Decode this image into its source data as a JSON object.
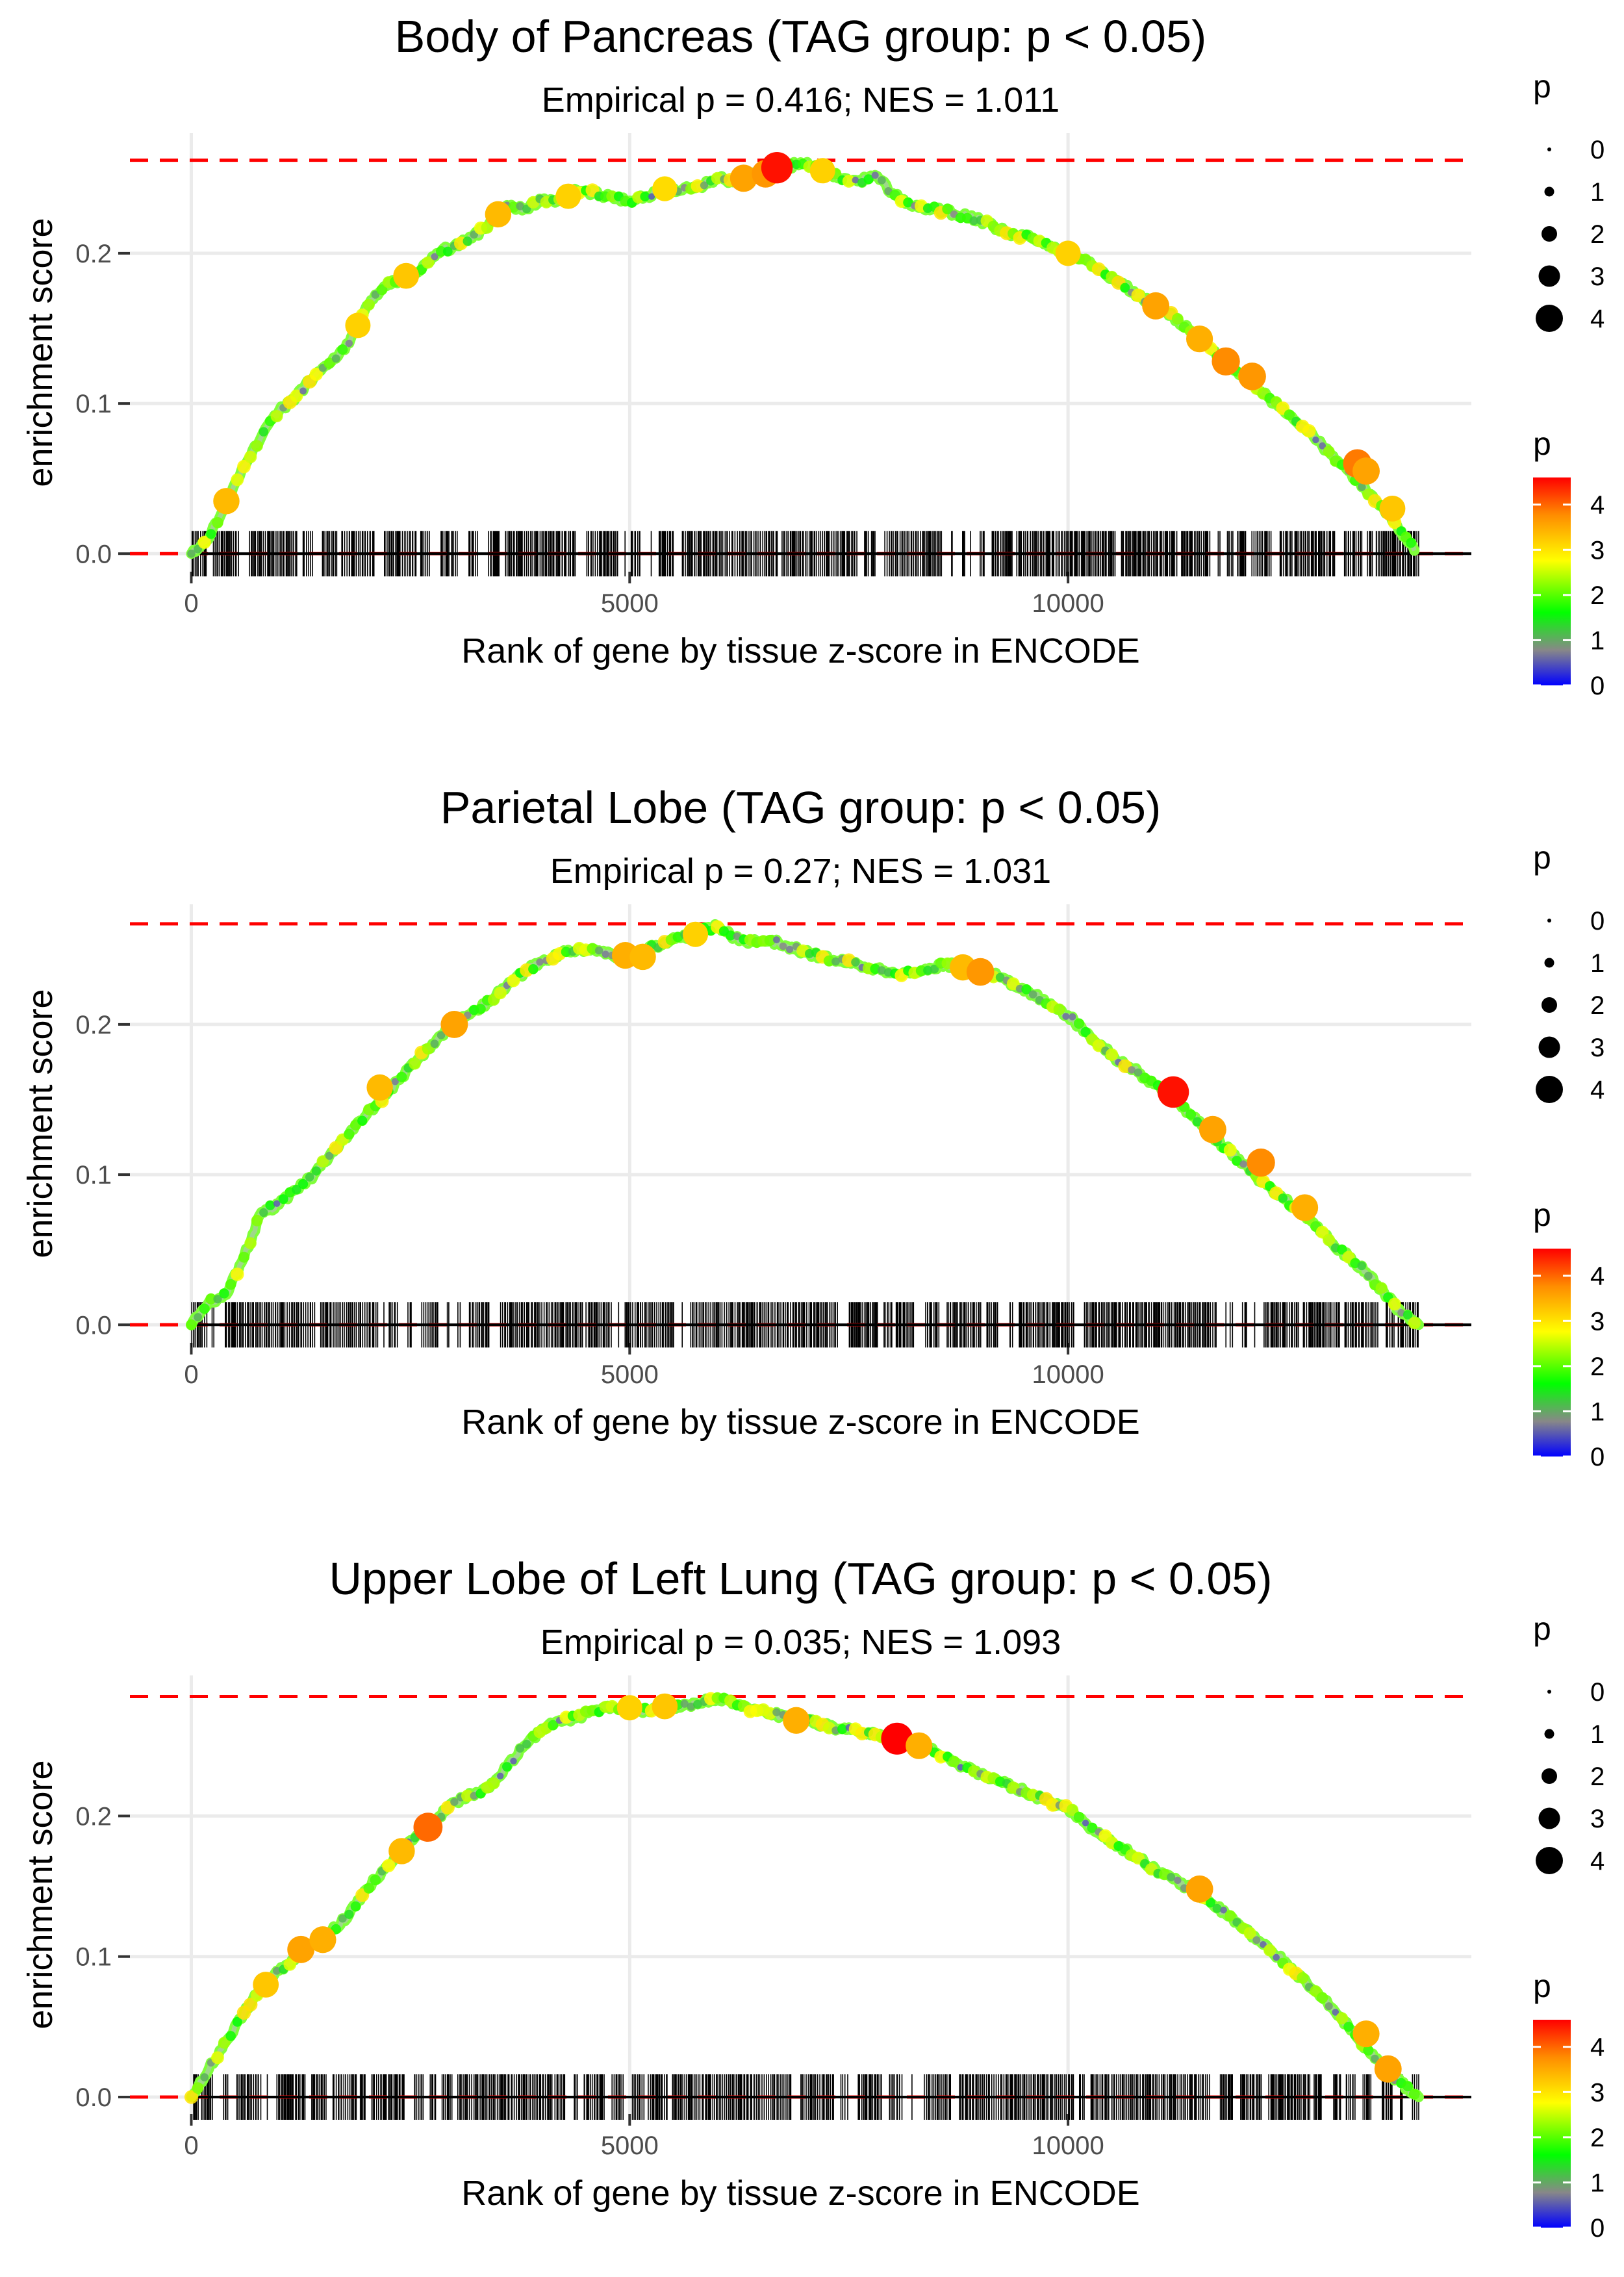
{
  "chart_data": [
    {
      "type": "line",
      "title": "Body of Pancreas (TAG group: p < 0.05)",
      "subtitle": "Empirical p = 0.416; NES = 1.011",
      "xlabel": "Rank of gene by tissue z-score in ENCODE",
      "ylabel": "enrichment score",
      "xlim": [
        -700,
        14600
      ],
      "ylim": [
        -0.012,
        0.28
      ],
      "xticks": [
        0,
        5000,
        10000
      ],
      "xtick_labels": [
        "0",
        "5000",
        "10000"
      ],
      "yticks": [
        0.0,
        0.1,
        0.2
      ],
      "ytick_labels": [
        "0.0",
        "0.1",
        "0.2"
      ],
      "max_es": 0.262,
      "gene_count": 14000,
      "series": [
        {
          "name": "enrichment score",
          "x": [
            0,
            200,
            400,
            600,
            800,
            1000,
            1200,
            1400,
            1600,
            1800,
            2000,
            2200,
            2400,
            2600,
            2800,
            3000,
            3200,
            3400,
            3600,
            3800,
            4000,
            4200,
            4400,
            4600,
            4800,
            5000,
            5200,
            5400,
            5600,
            5800,
            6000,
            6200,
            6400,
            6600,
            6800,
            7000,
            7200,
            7400,
            7600,
            7800,
            8000,
            8200,
            8400,
            8600,
            8800,
            9000,
            9200,
            9400,
            9600,
            9800,
            10000,
            10200,
            10400,
            10600,
            10800,
            11000,
            11200,
            11400,
            11600,
            11800,
            12000,
            12200,
            12400,
            12600,
            12800,
            13000,
            13200,
            13400,
            13600,
            13800,
            13950
          ],
          "y": [
            0.0,
            0.01,
            0.035,
            0.058,
            0.078,
            0.095,
            0.105,
            0.118,
            0.128,
            0.14,
            0.165,
            0.178,
            0.183,
            0.188,
            0.2,
            0.205,
            0.21,
            0.22,
            0.232,
            0.23,
            0.235,
            0.236,
            0.242,
            0.24,
            0.238,
            0.235,
            0.238,
            0.243,
            0.242,
            0.245,
            0.25,
            0.248,
            0.252,
            0.256,
            0.258,
            0.26,
            0.255,
            0.25,
            0.248,
            0.252,
            0.24,
            0.232,
            0.23,
            0.228,
            0.225,
            0.222,
            0.216,
            0.212,
            0.21,
            0.205,
            0.2,
            0.196,
            0.188,
            0.18,
            0.172,
            0.165,
            0.158,
            0.148,
            0.138,
            0.128,
            0.118,
            0.108,
            0.098,
            0.088,
            0.078,
            0.066,
            0.055,
            0.042,
            0.03,
            0.015,
            0.002
          ]
        }
      ],
      "highlight_points": [
        {
          "x": 400,
          "y": 0.035,
          "p": 3.4
        },
        {
          "x": 1900,
          "y": 0.152,
          "p": 3.2
        },
        {
          "x": 2450,
          "y": 0.185,
          "p": 3.3
        },
        {
          "x": 3500,
          "y": 0.226,
          "p": 3.4
        },
        {
          "x": 4300,
          "y": 0.238,
          "p": 3.2
        },
        {
          "x": 5400,
          "y": 0.243,
          "p": 3.1
        },
        {
          "x": 6300,
          "y": 0.25,
          "p": 3.6
        },
        {
          "x": 6550,
          "y": 0.253,
          "p": 3.7
        },
        {
          "x": 6680,
          "y": 0.257,
          "p": 4.5
        },
        {
          "x": 7200,
          "y": 0.255,
          "p": 3.2
        },
        {
          "x": 10000,
          "y": 0.2,
          "p": 3.2
        },
        {
          "x": 11000,
          "y": 0.165,
          "p": 3.6
        },
        {
          "x": 11500,
          "y": 0.143,
          "p": 3.5
        },
        {
          "x": 11800,
          "y": 0.128,
          "p": 3.8
        },
        {
          "x": 12100,
          "y": 0.118,
          "p": 3.7
        },
        {
          "x": 13300,
          "y": 0.06,
          "p": 3.9
        },
        {
          "x": 13400,
          "y": 0.055,
          "p": 3.6
        },
        {
          "x": 13700,
          "y": 0.03,
          "p": 3.3
        }
      ],
      "legend_size": {
        "title": "p",
        "labels": [
          "0",
          "1",
          "2",
          "3",
          "4"
        ]
      },
      "legend_color": {
        "title": "p",
        "labels": [
          "0",
          "1",
          "2",
          "3",
          "4"
        ]
      }
    },
    {
      "type": "line",
      "title": "Parietal Lobe (TAG group: p < 0.05)",
      "subtitle": "Empirical p = 0.27; NES = 1.031",
      "xlabel": "Rank of gene by tissue z-score in ENCODE",
      "ylabel": "enrichment score",
      "xlim": [
        -700,
        14600
      ],
      "ylim": [
        -0.012,
        0.28
      ],
      "xticks": [
        0,
        5000,
        10000
      ],
      "xtick_labels": [
        "0",
        "5000",
        "10000"
      ],
      "yticks": [
        0.0,
        0.1,
        0.2
      ],
      "ytick_labels": [
        "0.0",
        "0.1",
        "0.2"
      ],
      "max_es": 0.267,
      "gene_count": 14000,
      "series": [
        {
          "name": "enrichment score",
          "x": [
            0,
            200,
            400,
            600,
            800,
            1000,
            1200,
            1400,
            1600,
            1800,
            2000,
            2200,
            2400,
            2600,
            2800,
            3000,
            3200,
            3400,
            3600,
            3800,
            4000,
            4200,
            4400,
            4600,
            4800,
            5000,
            5200,
            5400,
            5600,
            5800,
            6000,
            6200,
            6400,
            6600,
            6800,
            7000,
            7200,
            7400,
            7600,
            7800,
            8000,
            8200,
            8400,
            8600,
            8800,
            9000,
            9200,
            9400,
            9600,
            9800,
            10000,
            10200,
            10400,
            10600,
            10800,
            11000,
            11200,
            11400,
            11600,
            11800,
            12000,
            12200,
            12400,
            12600,
            12800,
            13000,
            13200,
            13400,
            13600,
            13800,
            14000
          ],
          "y": [
            0.0,
            0.015,
            0.02,
            0.045,
            0.075,
            0.08,
            0.09,
            0.1,
            0.115,
            0.127,
            0.14,
            0.152,
            0.165,
            0.178,
            0.19,
            0.2,
            0.208,
            0.215,
            0.226,
            0.235,
            0.242,
            0.247,
            0.25,
            0.25,
            0.246,
            0.245,
            0.25,
            0.255,
            0.258,
            0.262,
            0.265,
            0.258,
            0.255,
            0.256,
            0.252,
            0.248,
            0.245,
            0.242,
            0.24,
            0.237,
            0.235,
            0.234,
            0.236,
            0.24,
            0.238,
            0.236,
            0.232,
            0.225,
            0.22,
            0.214,
            0.206,
            0.195,
            0.185,
            0.175,
            0.168,
            0.16,
            0.152,
            0.14,
            0.128,
            0.118,
            0.107,
            0.095,
            0.086,
            0.078,
            0.068,
            0.055,
            0.045,
            0.035,
            0.022,
            0.008,
            0.0
          ]
        }
      ],
      "highlight_points": [
        {
          "x": 2150,
          "y": 0.158,
          "p": 3.4
        },
        {
          "x": 3000,
          "y": 0.2,
          "p": 3.6
        },
        {
          "x": 4950,
          "y": 0.246,
          "p": 3.5
        },
        {
          "x": 5150,
          "y": 0.245,
          "p": 3.4
        },
        {
          "x": 5750,
          "y": 0.26,
          "p": 3.2
        },
        {
          "x": 8800,
          "y": 0.238,
          "p": 3.4
        },
        {
          "x": 9000,
          "y": 0.235,
          "p": 3.7
        },
        {
          "x": 11200,
          "y": 0.155,
          "p": 4.5
        },
        {
          "x": 11650,
          "y": 0.13,
          "p": 3.6
        },
        {
          "x": 12200,
          "y": 0.108,
          "p": 3.8
        },
        {
          "x": 12700,
          "y": 0.078,
          "p": 3.5
        }
      ],
      "legend_size": {
        "title": "p",
        "labels": [
          "0",
          "1",
          "2",
          "3",
          "4"
        ]
      },
      "legend_color": {
        "title": "p",
        "labels": [
          "0",
          "1",
          "2",
          "3",
          "4"
        ]
      }
    },
    {
      "type": "line",
      "title": "Upper Lobe of Left Lung (TAG group: p < 0.05)",
      "subtitle": "Empirical p = 0.035; NES = 1.093",
      "xlabel": "Rank of gene by tissue z-score in ENCODE",
      "ylabel": "enrichment score",
      "xlim": [
        -700,
        14600
      ],
      "ylim": [
        -0.012,
        0.3
      ],
      "xticks": [
        0,
        5000,
        10000
      ],
      "xtick_labels": [
        "0",
        "5000",
        "10000"
      ],
      "yticks": [
        0.0,
        0.1,
        0.2
      ],
      "ytick_labels": [
        "0.0",
        "0.1",
        "0.2"
      ],
      "max_es": 0.285,
      "gene_count": 14000,
      "series": [
        {
          "name": "enrichment score",
          "x": [
            0,
            200,
            400,
            600,
            800,
            1000,
            1200,
            1400,
            1600,
            1800,
            2000,
            2200,
            2400,
            2600,
            2800,
            3000,
            3200,
            3400,
            3600,
            3800,
            4000,
            4200,
            4400,
            4600,
            4800,
            5000,
            5200,
            5400,
            5600,
            5800,
            6000,
            6200,
            6400,
            6600,
            6800,
            7000,
            7200,
            7400,
            7600,
            7800,
            8000,
            8200,
            8400,
            8600,
            8800,
            9000,
            9200,
            9400,
            9600,
            9800,
            10000,
            10200,
            10400,
            10600,
            10800,
            11000,
            11200,
            11400,
            11600,
            11800,
            12000,
            12200,
            12400,
            12600,
            12800,
            13000,
            13200,
            13400,
            13600,
            13800,
            14000
          ],
          "y": [
            0.0,
            0.02,
            0.04,
            0.06,
            0.078,
            0.09,
            0.1,
            0.11,
            0.118,
            0.13,
            0.148,
            0.162,
            0.175,
            0.188,
            0.198,
            0.21,
            0.215,
            0.22,
            0.235,
            0.25,
            0.262,
            0.268,
            0.27,
            0.275,
            0.278,
            0.276,
            0.275,
            0.278,
            0.278,
            0.28,
            0.284,
            0.28,
            0.275,
            0.273,
            0.27,
            0.268,
            0.265,
            0.262,
            0.26,
            0.258,
            0.255,
            0.252,
            0.248,
            0.242,
            0.235,
            0.23,
            0.225,
            0.22,
            0.215,
            0.21,
            0.205,
            0.195,
            0.185,
            0.178,
            0.17,
            0.162,
            0.155,
            0.148,
            0.14,
            0.13,
            0.12,
            0.11,
            0.1,
            0.088,
            0.076,
            0.064,
            0.05,
            0.035,
            0.02,
            0.01,
            0.0
          ]
        }
      ],
      "highlight_points": [
        {
          "x": 850,
          "y": 0.08,
          "p": 3.3
        },
        {
          "x": 1250,
          "y": 0.105,
          "p": 3.6
        },
        {
          "x": 1500,
          "y": 0.112,
          "p": 3.5
        },
        {
          "x": 2400,
          "y": 0.175,
          "p": 3.4
        },
        {
          "x": 2700,
          "y": 0.192,
          "p": 4.0
        },
        {
          "x": 5000,
          "y": 0.277,
          "p": 3.2
        },
        {
          "x": 5400,
          "y": 0.278,
          "p": 3.3
        },
        {
          "x": 6900,
          "y": 0.268,
          "p": 3.5
        },
        {
          "x": 8050,
          "y": 0.255,
          "p": 4.6
        },
        {
          "x": 8300,
          "y": 0.25,
          "p": 3.5
        },
        {
          "x": 11500,
          "y": 0.148,
          "p": 3.6
        },
        {
          "x": 13400,
          "y": 0.045,
          "p": 3.5
        },
        {
          "x": 13650,
          "y": 0.02,
          "p": 3.6
        }
      ],
      "legend_size": {
        "title": "p",
        "labels": [
          "0",
          "1",
          "2",
          "3",
          "4"
        ]
      },
      "legend_color": {
        "title": "p",
        "labels": [
          "0",
          "1",
          "2",
          "3",
          "4"
        ]
      }
    }
  ],
  "colors": {
    "max_line": "#ff0000",
    "zero_line": "#000000",
    "grid": "#ebebeb",
    "gradient": [
      "#0000ff",
      "#888888",
      "#00ff00",
      "#ffff00",
      "#ff8c00",
      "#ff0000"
    ]
  }
}
